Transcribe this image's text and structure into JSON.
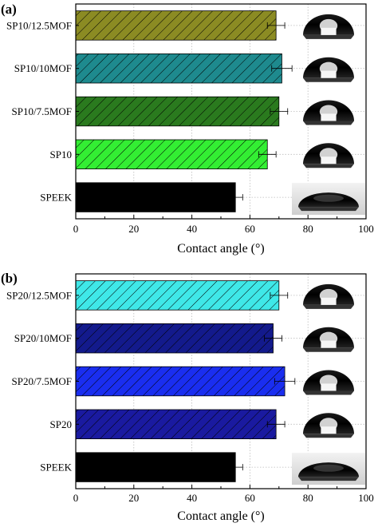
{
  "chart_data": [
    {
      "type": "bar",
      "orientation": "horizontal",
      "panel_label": "(a)",
      "categories": [
        "SP10/12.5MOF",
        "SP10/10MOF",
        "SP10/7.5MOF",
        "SP10",
        "SPEEK"
      ],
      "values": [
        69,
        71,
        70,
        66,
        55
      ],
      "errors": [
        3,
        3.5,
        3,
        3,
        2.5
      ],
      "colors": [
        "#8b8b23",
        "#1e8a8e",
        "#2a7a1e",
        "#33ee33",
        "#000000"
      ],
      "hatched": [
        true,
        true,
        true,
        true,
        false
      ],
      "xlabel": "Contact angle (°)",
      "xlim": [
        0,
        100
      ],
      "xticks": [
        "0",
        "20",
        "40",
        "60",
        "80",
        "100"
      ],
      "grid": true,
      "inset_images": "water-droplet photos beside each bar"
    },
    {
      "type": "bar",
      "orientation": "horizontal",
      "panel_label": "(b)",
      "categories": [
        "SP20/12.5MOF",
        "SP20/10MOF",
        "SP20/7.5MOF",
        "SP20",
        "SPEEK"
      ],
      "values": [
        70,
        68,
        72,
        69,
        55
      ],
      "errors": [
        3,
        3,
        3.5,
        3,
        2.5
      ],
      "colors": [
        "#3fe8e8",
        "#131a8c",
        "#1a2ef0",
        "#1a1aa0",
        "#000000"
      ],
      "hatched": [
        true,
        true,
        true,
        true,
        false
      ],
      "xlabel": "Contact angle (°)",
      "xlim": [
        0,
        100
      ],
      "xticks": [
        "0",
        "20",
        "40",
        "60",
        "80",
        "100"
      ],
      "grid": true,
      "inset_images": "water-droplet photos beside each bar"
    }
  ]
}
